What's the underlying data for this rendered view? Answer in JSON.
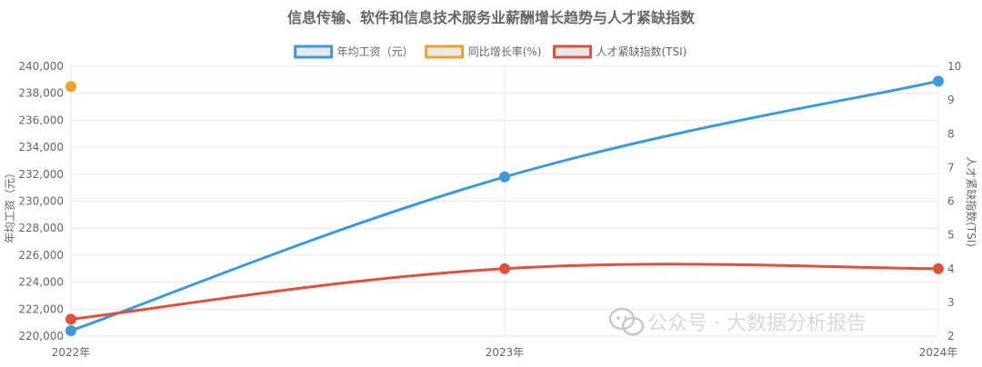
{
  "chart_data": {
    "type": "line",
    "title": "信息传输、软件和信息技术服务业薪酬增长趋势与人才紧缺指数",
    "categories": [
      "2022年",
      "2023年",
      "2024年"
    ],
    "series": [
      {
        "name": "年均工资（元）",
        "axis": "left",
        "values": [
          220400,
          231800,
          238900
        ],
        "color": "#3b9ad9"
      },
      {
        "name": "同比增长率(%)",
        "axis": "right",
        "values": [
          9.4,
          null,
          null
        ],
        "color": "#eba12a"
      },
      {
        "name": "人才紧缺指数(TSI)",
        "axis": "right",
        "values": [
          2.5,
          4.0,
          4.0
        ],
        "color": "#e04f3f"
      }
    ],
    "y_left": {
      "label": "年均工资（元）",
      "ylim": [
        220000,
        240000
      ],
      "ticks": [
        "220,000",
        "222,000",
        "224,000",
        "226,000",
        "228,000",
        "230,000",
        "232,000",
        "234,000",
        "236,000",
        "238,000",
        "240,000"
      ]
    },
    "y_right": {
      "label": "人才紧缺指数(TSI)",
      "ylim": [
        2,
        10
      ],
      "ticks": [
        "2",
        "3",
        "4",
        "5",
        "6",
        "7",
        "8",
        "9",
        "10"
      ]
    },
    "legend_position": "top-center",
    "grid": true
  },
  "watermark": {
    "text": "公众号 · 大数据分析报告",
    "icon": "wechat-icon",
    "color": "#c8c8c8"
  }
}
